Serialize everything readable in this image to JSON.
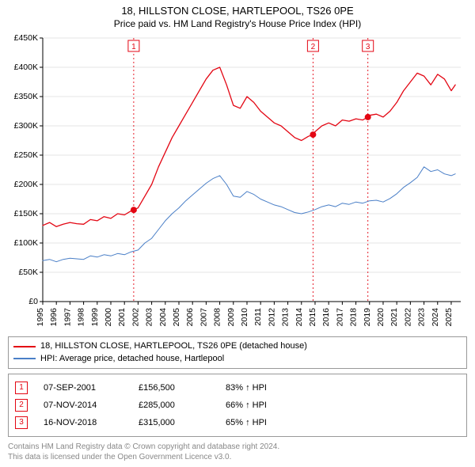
{
  "title": "18, HILLSTON CLOSE, HARTLEPOOL, TS26 0PE",
  "subtitle": "Price paid vs. HM Land Registry's House Price Index (HPI)",
  "chart": {
    "type": "line",
    "background_color": "#ffffff",
    "grid_color": "#e5e5e5",
    "axis_color": "#000000",
    "x": {
      "min": 1995,
      "max": 2025.7,
      "ticks_step": 1,
      "ticks": [
        1995,
        1996,
        1997,
        1998,
        1999,
        2000,
        2001,
        2002,
        2003,
        2004,
        2005,
        2006,
        2007,
        2008,
        2009,
        2010,
        2011,
        2012,
        2013,
        2014,
        2015,
        2016,
        2017,
        2018,
        2019,
        2020,
        2021,
        2022,
        2023,
        2024,
        2025
      ]
    },
    "y": {
      "min": 0,
      "max": 450000,
      "tick_step": 50000,
      "tick_prefix": "£",
      "tick_suffix": "K",
      "ticks": [
        0,
        50000,
        100000,
        150000,
        200000,
        250000,
        300000,
        350000,
        400000,
        450000
      ]
    },
    "series": [
      {
        "id": "property",
        "label": "18, HILLSTON CLOSE, HARTLEPOOL, TS26 0PE (detached house)",
        "color": "#e30613",
        "width": 1.3,
        "data": [
          [
            1995.0,
            130000
          ],
          [
            1995.5,
            135000
          ],
          [
            1996.0,
            128000
          ],
          [
            1996.5,
            132000
          ],
          [
            1997.0,
            135000
          ],
          [
            1997.5,
            133000
          ],
          [
            1998.0,
            132000
          ],
          [
            1998.5,
            140000
          ],
          [
            1999.0,
            138000
          ],
          [
            1999.5,
            145000
          ],
          [
            2000.0,
            142000
          ],
          [
            2000.5,
            150000
          ],
          [
            2001.0,
            148000
          ],
          [
            2001.5,
            155000
          ],
          [
            2001.68,
            156500
          ],
          [
            2002.0,
            160000
          ],
          [
            2002.5,
            180000
          ],
          [
            2003.0,
            200000
          ],
          [
            2003.5,
            230000
          ],
          [
            2004.0,
            255000
          ],
          [
            2004.5,
            280000
          ],
          [
            2005.0,
            300000
          ],
          [
            2005.5,
            320000
          ],
          [
            2006.0,
            340000
          ],
          [
            2006.5,
            360000
          ],
          [
            2007.0,
            380000
          ],
          [
            2007.5,
            395000
          ],
          [
            2008.0,
            400000
          ],
          [
            2008.5,
            370000
          ],
          [
            2009.0,
            335000
          ],
          [
            2009.5,
            330000
          ],
          [
            2010.0,
            350000
          ],
          [
            2010.5,
            340000
          ],
          [
            2011.0,
            325000
          ],
          [
            2011.5,
            315000
          ],
          [
            2012.0,
            305000
          ],
          [
            2012.5,
            300000
          ],
          [
            2013.0,
            290000
          ],
          [
            2013.5,
            280000
          ],
          [
            2014.0,
            275000
          ],
          [
            2014.5,
            282000
          ],
          [
            2014.85,
            285000
          ],
          [
            2015.0,
            290000
          ],
          [
            2015.5,
            300000
          ],
          [
            2016.0,
            305000
          ],
          [
            2016.5,
            300000
          ],
          [
            2017.0,
            310000
          ],
          [
            2017.5,
            308000
          ],
          [
            2018.0,
            312000
          ],
          [
            2018.5,
            310000
          ],
          [
            2018.88,
            315000
          ],
          [
            2019.0,
            318000
          ],
          [
            2019.5,
            320000
          ],
          [
            2020.0,
            315000
          ],
          [
            2020.5,
            325000
          ],
          [
            2021.0,
            340000
          ],
          [
            2021.5,
            360000
          ],
          [
            2022.0,
            375000
          ],
          [
            2022.5,
            390000
          ],
          [
            2023.0,
            385000
          ],
          [
            2023.5,
            370000
          ],
          [
            2024.0,
            388000
          ],
          [
            2024.5,
            380000
          ],
          [
            2025.0,
            360000
          ],
          [
            2025.3,
            370000
          ]
        ]
      },
      {
        "id": "hpi",
        "label": "HPI: Average price, detached house, Hartlepool",
        "color": "#4a7fc7",
        "width": 1.0,
        "data": [
          [
            1995.0,
            70000
          ],
          [
            1995.5,
            72000
          ],
          [
            1996.0,
            68000
          ],
          [
            1996.5,
            72000
          ],
          [
            1997.0,
            74000
          ],
          [
            1997.5,
            73000
          ],
          [
            1998.0,
            72000
          ],
          [
            1998.5,
            78000
          ],
          [
            1999.0,
            76000
          ],
          [
            1999.5,
            80000
          ],
          [
            2000.0,
            78000
          ],
          [
            2000.5,
            82000
          ],
          [
            2001.0,
            80000
          ],
          [
            2001.5,
            85000
          ],
          [
            2002.0,
            88000
          ],
          [
            2002.5,
            100000
          ],
          [
            2003.0,
            108000
          ],
          [
            2003.5,
            123000
          ],
          [
            2004.0,
            138000
          ],
          [
            2004.5,
            150000
          ],
          [
            2005.0,
            160000
          ],
          [
            2005.5,
            172000
          ],
          [
            2006.0,
            182000
          ],
          [
            2006.5,
            192000
          ],
          [
            2007.0,
            202000
          ],
          [
            2007.5,
            210000
          ],
          [
            2008.0,
            215000
          ],
          [
            2008.5,
            200000
          ],
          [
            2009.0,
            180000
          ],
          [
            2009.5,
            178000
          ],
          [
            2010.0,
            188000
          ],
          [
            2010.5,
            183000
          ],
          [
            2011.0,
            175000
          ],
          [
            2011.5,
            170000
          ],
          [
            2012.0,
            165000
          ],
          [
            2012.5,
            162000
          ],
          [
            2013.0,
            157000
          ],
          [
            2013.5,
            152000
          ],
          [
            2014.0,
            150000
          ],
          [
            2014.5,
            153000
          ],
          [
            2015.0,
            157000
          ],
          [
            2015.5,
            162000
          ],
          [
            2016.0,
            165000
          ],
          [
            2016.5,
            162000
          ],
          [
            2017.0,
            168000
          ],
          [
            2017.5,
            166000
          ],
          [
            2018.0,
            170000
          ],
          [
            2018.5,
            168000
          ],
          [
            2019.0,
            172000
          ],
          [
            2019.5,
            173000
          ],
          [
            2020.0,
            170000
          ],
          [
            2020.5,
            176000
          ],
          [
            2021.0,
            184000
          ],
          [
            2021.5,
            195000
          ],
          [
            2022.0,
            203000
          ],
          [
            2022.5,
            212000
          ],
          [
            2023.0,
            230000
          ],
          [
            2023.5,
            222000
          ],
          [
            2024.0,
            225000
          ],
          [
            2024.5,
            218000
          ],
          [
            2025.0,
            215000
          ],
          [
            2025.3,
            218000
          ]
        ]
      }
    ],
    "sale_markers": [
      {
        "n": 1,
        "x": 2001.68,
        "y": 156500,
        "color": "#e30613"
      },
      {
        "n": 2,
        "x": 2014.85,
        "y": 285000,
        "color": "#e30613"
      },
      {
        "n": 3,
        "x": 2018.88,
        "y": 315000,
        "color": "#e30613"
      }
    ],
    "vline_color": "#e30613",
    "vline_dash": "2,3"
  },
  "legend": [
    {
      "color": "#e30613",
      "label": "18, HILLSTON CLOSE, HARTLEPOOL, TS26 0PE (detached house)"
    },
    {
      "color": "#4a7fc7",
      "label": "HPI: Average price, detached house, Hartlepool"
    }
  ],
  "sales": [
    {
      "n": "1",
      "date": "07-SEP-2001",
      "price": "£156,500",
      "pct": "83% ↑ HPI",
      "color": "#e30613"
    },
    {
      "n": "2",
      "date": "07-NOV-2014",
      "price": "£285,000",
      "pct": "66% ↑ HPI",
      "color": "#e30613"
    },
    {
      "n": "3",
      "date": "16-NOV-2018",
      "price": "£315,000",
      "pct": "65% ↑ HPI",
      "color": "#e30613"
    }
  ],
  "footer": {
    "line1": "Contains HM Land Registry data © Crown copyright and database right 2024.",
    "line2": "This data is licensed under the Open Government Licence v3.0."
  }
}
